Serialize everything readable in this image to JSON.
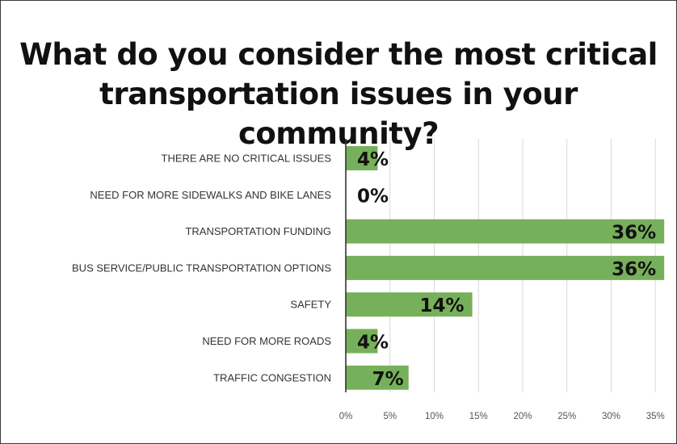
{
  "chart_data": {
    "type": "bar",
    "orientation": "horizontal",
    "title": "What do you consider the most critical transportation issues in your community?",
    "title_lines": [
      "What do you consider the most critical",
      "transportation issues in your community?"
    ],
    "categories": [
      "THERE ARE NO CRITICAL ISSUES",
      "NEED FOR MORE SIDEWALKS AND BIKE LANES",
      "TRANSPORTATION FUNDING",
      "BUS SERVICE/PUBLIC TRANSPORTATION OPTIONS",
      "SAFETY",
      "NEED FOR MORE ROADS",
      "TRAFFIC CONGESTION"
    ],
    "values": [
      3.6,
      0,
      36,
      36,
      14.3,
      3.6,
      7.1
    ],
    "data_labels": [
      "4%",
      "0%",
      "36%",
      "36%",
      "14%",
      "4%",
      "7%"
    ],
    "xlim": [
      0,
      35
    ],
    "x_ticks": [
      0,
      5,
      10,
      15,
      20,
      25,
      30,
      35
    ],
    "x_tick_labels": [
      "0%",
      "5%",
      "10%",
      "15%",
      "20%",
      "25%",
      "30%",
      "35%"
    ],
    "grid": "vertical",
    "bar_color": "#77b05a",
    "grid_color": "#d9d9d9",
    "axis_color": "#333333"
  }
}
